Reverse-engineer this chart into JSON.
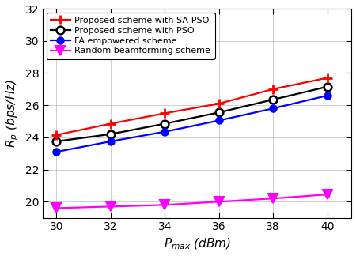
{
  "x": [
    30,
    32,
    34,
    36,
    38,
    40
  ],
  "sa_pso": [
    24.15,
    24.85,
    25.5,
    26.1,
    27.0,
    27.7
  ],
  "pso": [
    23.75,
    24.2,
    24.85,
    25.55,
    26.35,
    27.15
  ],
  "fa": [
    23.1,
    23.75,
    24.35,
    25.05,
    25.8,
    26.6
  ],
  "random": [
    19.6,
    19.7,
    19.8,
    20.0,
    20.2,
    20.45
  ],
  "xlabel": "$P_{max}$ (dBm)",
  "ylabel": "$R_p$ (bps/Hz)",
  "ylim": [
    19.0,
    32.0
  ],
  "yticks": [
    20,
    22,
    24,
    26,
    28,
    30,
    32
  ],
  "xticks": [
    30,
    32,
    34,
    36,
    38,
    40
  ],
  "legend_sa_pso": "Proposed scheme with SA-PSO",
  "legend_pso": "Proposed scheme with PSO",
  "legend_fa": "FA empowered scheme",
  "legend_random": "Random beamforming scheme",
  "color_sa_pso": "#ff0000",
  "color_pso": "#000000",
  "color_fa": "#0000ff",
  "color_random": "#ff00ff",
  "grid_color": "#b0b0b0",
  "bg_color": "#ffffff"
}
